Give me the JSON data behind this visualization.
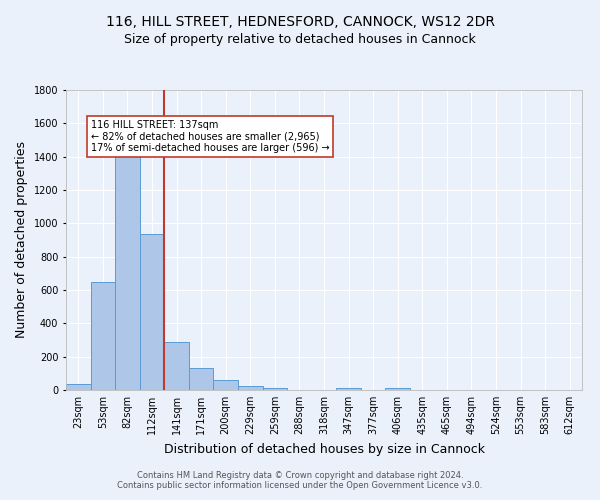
{
  "title1": "116, HILL STREET, HEDNESFORD, CANNOCK, WS12 2DR",
  "title2": "Size of property relative to detached houses in Cannock",
  "xlabel": "Distribution of detached houses by size in Cannock",
  "ylabel": "Number of detached properties",
  "footnote": "Contains HM Land Registry data © Crown copyright and database right 2024.\nContains public sector information licensed under the Open Government Licence v3.0.",
  "bin_labels": [
    "23sqm",
    "53sqm",
    "82sqm",
    "112sqm",
    "141sqm",
    "171sqm",
    "200sqm",
    "229sqm",
    "259sqm",
    "288sqm",
    "318sqm",
    "347sqm",
    "377sqm",
    "406sqm",
    "435sqm",
    "465sqm",
    "494sqm",
    "524sqm",
    "553sqm",
    "583sqm",
    "612sqm"
  ],
  "bar_values": [
    38,
    650,
    1470,
    935,
    290,
    130,
    62,
    22,
    10,
    0,
    0,
    10,
    0,
    10,
    0,
    0,
    0,
    0,
    0,
    0,
    0
  ],
  "bar_color": "#aec6e8",
  "bar_edge_color": "#5b9bd5",
  "vline_x_index": 3.5,
  "vline_color": "#c0392b",
  "annotation_text": "116 HILL STREET: 137sqm\n← 82% of detached houses are smaller (2,965)\n17% of semi-detached houses are larger (596) →",
  "annotation_box_color": "white",
  "annotation_box_edge_color": "#c0392b",
  "ylim": [
    0,
    1800
  ],
  "yticks": [
    0,
    200,
    400,
    600,
    800,
    1000,
    1200,
    1400,
    1600,
    1800
  ],
  "bg_color": "#eaf1fb",
  "plot_bg_color": "#eaf1fb",
  "grid_color": "white",
  "title_fontsize": 10,
  "subtitle_fontsize": 9,
  "axis_label_fontsize": 9,
  "tick_fontsize": 7,
  "footnote_fontsize": 6
}
